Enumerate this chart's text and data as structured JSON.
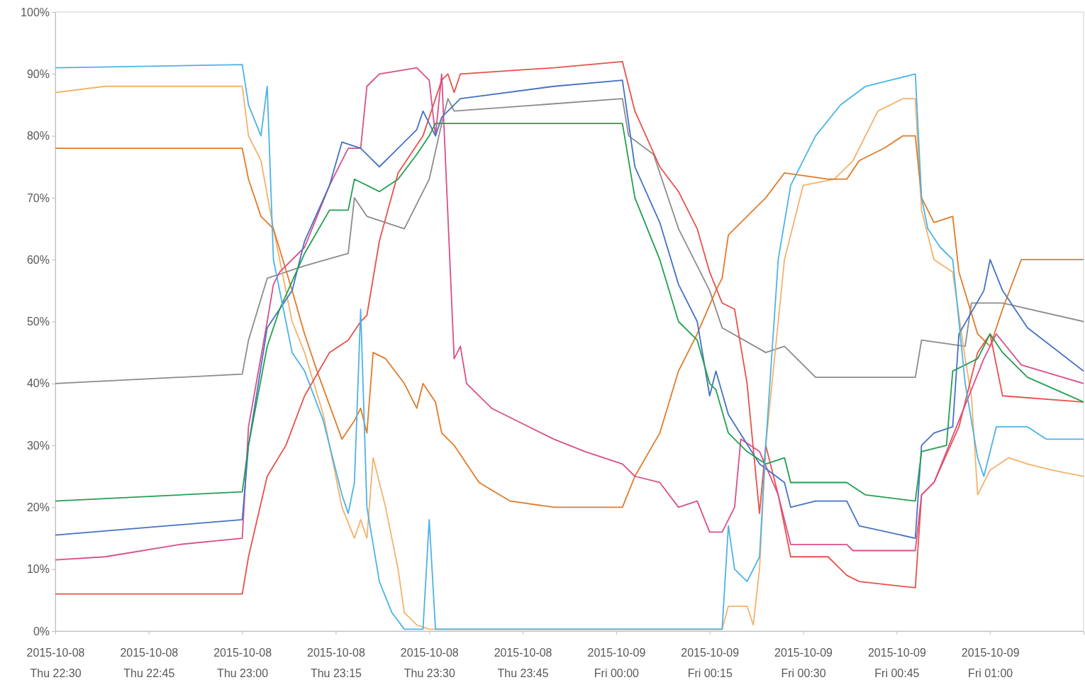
{
  "chart_data": {
    "type": "line",
    "xlim": [
      "2015-10-08T22:30",
      "2015-10-09T01:15"
    ],
    "ylim": [
      0,
      100
    ],
    "xticks": [
      {
        "value": "2015-10-08T22:30",
        "label": "2015-10-08\nThu 22:30"
      },
      {
        "value": "2015-10-08T22:45",
        "label": "2015-10-08\nThu 22:45"
      },
      {
        "value": "2015-10-08T23:00",
        "label": "2015-10-08\nThu 23:00"
      },
      {
        "value": "2015-10-08T23:15",
        "label": "2015-10-08\nThu 23:15"
      },
      {
        "value": "2015-10-08T23:30",
        "label": "2015-10-08\nThu 23:30"
      },
      {
        "value": "2015-10-08T23:45",
        "label": "2015-10-08\nThu 23:45"
      },
      {
        "value": "2015-10-09T00:00",
        "label": "2015-10-09\nFri 00:00"
      },
      {
        "value": "2015-10-09T00:15",
        "label": "2015-10-09\nFri 00:15"
      },
      {
        "value": "2015-10-09T00:30",
        "label": "2015-10-09\nFri 00:30"
      },
      {
        "value": "2015-10-09T00:45",
        "label": "2015-10-09\nFri 00:45"
      },
      {
        "value": "2015-10-09T01:00",
        "label": "2015-10-09\nFri 01:00"
      }
    ],
    "yticks": [
      {
        "value": 0,
        "label": "0%"
      },
      {
        "value": 10,
        "label": "10%"
      },
      {
        "value": 20,
        "label": "20%"
      },
      {
        "value": 30,
        "label": "30%"
      },
      {
        "value": 40,
        "label": "40%"
      },
      {
        "value": 50,
        "label": "50%"
      },
      {
        "value": 60,
        "label": "60%"
      },
      {
        "value": 70,
        "label": "70%"
      },
      {
        "value": 80,
        "label": "80%"
      },
      {
        "value": 90,
        "label": "90%"
      },
      {
        "value": 100,
        "label": "100%"
      }
    ],
    "line_style": "solid",
    "series": [
      {
        "color": "#8c8c8c",
        "x": [
          "2015-10-08T22:30",
          "2015-10-08T23:00",
          "2015-10-08T23:01",
          "2015-10-08T23:04",
          "2015-10-08T23:10",
          "2015-10-08T23:17",
          "2015-10-08T23:18",
          "2015-10-08T23:20",
          "2015-10-08T23:26",
          "2015-10-08T23:30",
          "2015-10-08T23:32",
          "2015-10-08T23:33",
          "2015-10-08T23:34",
          "2015-10-09T00:01",
          "2015-10-09T00:02",
          "2015-10-09T00:06",
          "2015-10-09T00:10",
          "2015-10-09T00:15",
          "2015-10-09T00:17",
          "2015-10-09T00:24",
          "2015-10-09T00:27",
          "2015-10-09T00:32",
          "2015-10-09T00:48",
          "2015-10-09T00:49",
          "2015-10-09T00:56",
          "2015-10-09T00:57",
          "2015-10-09T01:02",
          "2015-10-09T01:15"
        ],
        "values": [
          40,
          41.5,
          47,
          57,
          59,
          61,
          70,
          67,
          65,
          73,
          82,
          86,
          84,
          86,
          80,
          77,
          65,
          55,
          49,
          45,
          46,
          41,
          41,
          47,
          46,
          53,
          53,
          50
        ]
      },
      {
        "color": "#f4b26b",
        "x": [
          "2015-10-08T22:30",
          "2015-10-08T22:38",
          "2015-10-08T23:00",
          "2015-10-08T23:01",
          "2015-10-08T23:03",
          "2015-10-08T23:05",
          "2015-10-08T23:08",
          "2015-10-08T23:10",
          "2015-10-08T23:13",
          "2015-10-08T23:16",
          "2015-10-08T23:18",
          "2015-10-08T23:19",
          "2015-10-08T23:20",
          "2015-10-08T23:21",
          "2015-10-08T23:23",
          "2015-10-08T23:25",
          "2015-10-08T23:26",
          "2015-10-08T23:28",
          "2015-10-08T23:30",
          "2015-10-09T00:17",
          "2015-10-09T00:18",
          "2015-10-09T00:21",
          "2015-10-09T00:22",
          "2015-10-09T00:23",
          "2015-10-09T00:24",
          "2015-10-09T00:27",
          "2015-10-09T00:30",
          "2015-10-09T00:35",
          "2015-10-09T00:38",
          "2015-10-09T00:42",
          "2015-10-09T00:46",
          "2015-10-09T00:48",
          "2015-10-09T00:49",
          "2015-10-09T00:51",
          "2015-10-09T00:54",
          "2015-10-09T00:56",
          "2015-10-09T00:57",
          "2015-10-09T00:58",
          "2015-10-09T01:00",
          "2015-10-09T01:03",
          "2015-10-09T01:06",
          "2015-10-09T01:10",
          "2015-10-09T01:15"
        ],
        "values": [
          87,
          88,
          88,
          80,
          76,
          65,
          50,
          45,
          35,
          20,
          15,
          18,
          15,
          28,
          20,
          10,
          3,
          1,
          0.3,
          0.3,
          4,
          4,
          1,
          10,
          30,
          60,
          72,
          73,
          76,
          84,
          86,
          86,
          68,
          60,
          58,
          44,
          38,
          22,
          26,
          28,
          27,
          26,
          25
        ]
      },
      {
        "color": "#e07b2a",
        "x": [
          "2015-10-08T22:30",
          "2015-10-08T23:00",
          "2015-10-08T23:01",
          "2015-10-08T23:03",
          "2015-10-08T23:05",
          "2015-10-08T23:08",
          "2015-10-08T23:10",
          "2015-10-08T23:12",
          "2015-10-08T23:16",
          "2015-10-08T23:18",
          "2015-10-08T23:19",
          "2015-10-08T23:20",
          "2015-10-08T23:21",
          "2015-10-08T23:23",
          "2015-10-08T23:26",
          "2015-10-08T23:28",
          "2015-10-08T23:29",
          "2015-10-08T23:31",
          "2015-10-08T23:32",
          "2015-10-08T23:34",
          "2015-10-08T23:38",
          "2015-10-08T23:43",
          "2015-10-08T23:50",
          "2015-10-09T00:01",
          "2015-10-09T00:03",
          "2015-10-09T00:07",
          "2015-10-09T00:10",
          "2015-10-09T00:13",
          "2015-10-09T00:16",
          "2015-10-09T00:17",
          "2015-10-09T00:18",
          "2015-10-09T00:21",
          "2015-10-09T00:24",
          "2015-10-09T00:27",
          "2015-10-09T00:34",
          "2015-10-09T00:37",
          "2015-10-09T00:39",
          "2015-10-09T00:43",
          "2015-10-09T00:46",
          "2015-10-09T00:48",
          "2015-10-09T00:49",
          "2015-10-09T00:51",
          "2015-10-09T00:54",
          "2015-10-09T00:55",
          "2015-10-09T00:58",
          "2015-10-09T01:00",
          "2015-10-09T01:02",
          "2015-10-09T01:05",
          "2015-10-09T01:15"
        ],
        "values": [
          78,
          78,
          73,
          67,
          65,
          55,
          48,
          42,
          31,
          34,
          36,
          32,
          45,
          44,
          40,
          36,
          40,
          37,
          32,
          30,
          24,
          21,
          20,
          20,
          25,
          32,
          42,
          48,
          55,
          57,
          64,
          67,
          70,
          74,
          73,
          73,
          76,
          78,
          80,
          80,
          70,
          66,
          67,
          58,
          48,
          46,
          52,
          60,
          60
        ]
      },
      {
        "color": "#e8514a",
        "x": [
          "2015-10-08T22:30",
          "2015-10-08T23:00",
          "2015-10-08T23:01",
          "2015-10-08T23:04",
          "2015-10-08T23:07",
          "2015-10-08T23:10",
          "2015-10-08T23:14",
          "2015-10-08T23:17",
          "2015-10-08T23:19",
          "2015-10-08T23:20",
          "2015-10-08T23:22",
          "2015-10-08T23:25",
          "2015-10-08T23:29",
          "2015-10-08T23:32",
          "2015-10-08T23:33",
          "2015-10-08T23:34",
          "2015-10-08T23:35",
          "2015-10-08T23:50",
          "2015-10-09T00:01",
          "2015-10-09T00:03",
          "2015-10-09T00:07",
          "2015-10-09T00:10",
          "2015-10-09T00:13",
          "2015-10-09T00:15",
          "2015-10-09T00:17",
          "2015-10-09T00:19",
          "2015-10-09T00:21",
          "2015-10-09T00:23",
          "2015-10-09T00:24",
          "2015-10-09T00:26",
          "2015-10-09T00:28",
          "2015-10-09T00:34",
          "2015-10-09T00:37",
          "2015-10-09T00:39",
          "2015-10-09T00:48",
          "2015-10-09T00:49",
          "2015-10-09T00:51",
          "2015-10-09T00:55",
          "2015-10-09T00:58",
          "2015-10-09T01:00",
          "2015-10-09T01:02",
          "2015-10-09T01:15"
        ],
        "values": [
          6,
          6,
          12,
          25,
          30,
          38,
          45,
          47,
          50,
          51,
          63,
          74,
          80,
          89,
          90,
          87,
          90,
          91,
          92,
          84,
          75,
          71,
          65,
          58,
          53,
          52,
          40,
          19,
          30,
          22,
          12,
          12,
          9,
          8,
          7,
          22,
          24,
          33,
          45,
          48,
          38,
          37
        ]
      },
      {
        "color": "#d94f8a",
        "x": [
          "2015-10-08T22:30",
          "2015-10-08T22:38",
          "2015-10-08T22:50",
          "2015-10-08T23:00",
          "2015-10-08T23:01",
          "2015-10-08T23:04",
          "2015-10-08T23:05",
          "2015-10-08T23:06",
          "2015-10-08T23:10",
          "2015-10-08T23:14",
          "2015-10-08T23:17",
          "2015-10-08T23:19",
          "2015-10-08T23:20",
          "2015-10-08T23:22",
          "2015-10-08T23:28",
          "2015-10-08T23:30",
          "2015-10-08T23:31",
          "2015-10-08T23:32",
          "2015-10-08T23:34",
          "2015-10-08T23:35",
          "2015-10-08T23:36",
          "2015-10-08T23:40",
          "2015-10-08T23:50",
          "2015-10-08T23:55",
          "2015-10-09T00:01",
          "2015-10-09T00:03",
          "2015-10-09T00:07",
          "2015-10-09T00:10",
          "2015-10-09T00:13",
          "2015-10-09T00:15",
          "2015-10-09T00:17",
          "2015-10-09T00:19",
          "2015-10-09T00:20",
          "2015-10-09T00:23",
          "2015-10-09T00:26",
          "2015-10-09T00:28",
          "2015-10-09T00:37",
          "2015-10-09T00:38",
          "2015-10-09T00:48",
          "2015-10-09T00:49",
          "2015-10-09T00:51",
          "2015-10-09T00:55",
          "2015-10-09T00:59",
          "2015-10-09T01:01",
          "2015-10-09T01:05",
          "2015-10-09T01:15"
        ],
        "values": [
          11.5,
          12,
          14,
          15,
          33,
          50,
          56,
          58,
          62,
          72,
          78,
          78,
          88,
          90,
          91,
          89,
          80,
          90,
          44,
          46,
          40,
          36,
          31,
          29,
          27,
          25,
          24,
          20,
          21,
          16,
          16,
          20,
          31,
          29,
          22,
          14,
          14,
          13,
          13,
          22,
          24,
          34,
          44,
          48,
          43,
          40
        ]
      },
      {
        "color": "#4472c4",
        "x": [
          "2015-10-08T22:30",
          "2015-10-08T23:00",
          "2015-10-08T23:01",
          "2015-10-08T23:04",
          "2015-10-08T23:08",
          "2015-10-08T23:10",
          "2015-10-08T23:14",
          "2015-10-08T23:16",
          "2015-10-08T23:19",
          "2015-10-08T23:22",
          "2015-10-08T23:25",
          "2015-10-08T23:28",
          "2015-10-08T23:29",
          "2015-10-08T23:31",
          "2015-10-08T23:32",
          "2015-10-08T23:35",
          "2015-10-08T23:50",
          "2015-10-09T00:01",
          "2015-10-09T00:03",
          "2015-10-09T00:07",
          "2015-10-09T00:10",
          "2015-10-09T00:13",
          "2015-10-09T00:15",
          "2015-10-09T00:16",
          "2015-10-09T00:18",
          "2015-10-09T00:23",
          "2015-10-09T00:27",
          "2015-10-09T00:28",
          "2015-10-09T00:32",
          "2015-10-09T00:37",
          "2015-10-09T00:39",
          "2015-10-09T00:48",
          "2015-10-09T00:49",
          "2015-10-09T00:51",
          "2015-10-09T00:54",
          "2015-10-09T00:55",
          "2015-10-09T00:59",
          "2015-10-09T01:00",
          "2015-10-09T01:02",
          "2015-10-09T01:06",
          "2015-10-09T01:15"
        ],
        "values": [
          15.5,
          18,
          30,
          49,
          55,
          63,
          72,
          79,
          78,
          75,
          78,
          81,
          84,
          80,
          83,
          86,
          88,
          89,
          75,
          66,
          56,
          50,
          38,
          42,
          35,
          27,
          24,
          20,
          21,
          21,
          17,
          15,
          30,
          32,
          33,
          48,
          55,
          60,
          55,
          49,
          42
        ]
      },
      {
        "color": "#21a04f",
        "x": [
          "2015-10-08T22:30",
          "2015-10-08T23:00",
          "2015-10-08T23:01",
          "2015-10-08T23:04",
          "2015-10-08T23:06",
          "2015-10-08T23:10",
          "2015-10-08T23:14",
          "2015-10-08T23:17",
          "2015-10-08T23:18",
          "2015-10-08T23:22",
          "2015-10-08T23:25",
          "2015-10-08T23:28",
          "2015-10-08T23:30",
          "2015-10-08T23:31",
          "2015-10-08T23:32",
          "2015-10-09T00:01",
          "2015-10-09T00:03",
          "2015-10-09T00:07",
          "2015-10-09T00:10",
          "2015-10-09T00:13",
          "2015-10-09T00:15",
          "2015-10-09T00:16",
          "2015-10-09T00:18",
          "2015-10-09T00:21",
          "2015-10-09T00:24",
          "2015-10-09T00:27",
          "2015-10-09T00:28",
          "2015-10-09T00:37",
          "2015-10-09T00:40",
          "2015-10-09T00:48",
          "2015-10-09T00:49",
          "2015-10-09T00:53",
          "2015-10-09T00:54",
          "2015-10-09T00:58",
          "2015-10-09T01:00",
          "2015-10-09T01:02",
          "2015-10-09T01:06",
          "2015-10-09T01:15"
        ],
        "values": [
          21,
          22.5,
          30,
          46,
          52,
          61,
          68,
          68,
          73,
          71,
          73,
          77,
          80,
          82,
          82,
          82,
          70,
          60,
          50,
          47,
          40,
          39,
          32,
          29,
          27,
          28,
          24,
          24,
          22,
          21,
          29,
          30,
          42,
          44,
          48,
          45,
          41,
          37
        ]
      },
      {
        "color": "#4db3e6",
        "x": [
          "2015-10-08T22:30",
          "2015-10-08T23:00",
          "2015-10-08T23:01",
          "2015-10-08T23:03",
          "2015-10-08T23:04",
          "2015-10-08T23:05",
          "2015-10-08T23:08",
          "2015-10-08T23:10",
          "2015-10-08T23:13",
          "2015-10-08T23:16",
          "2015-10-08T23:17",
          "2015-10-08T23:18",
          "2015-10-08T23:19",
          "2015-10-08T23:20",
          "2015-10-08T23:22",
          "2015-10-08T23:24",
          "2015-10-08T23:26",
          "2015-10-08T23:29",
          "2015-10-08T23:30",
          "2015-10-08T23:31",
          "2015-10-09T00:17",
          "2015-10-09T00:18",
          "2015-10-09T00:19",
          "2015-10-09T00:21",
          "2015-10-09T00:23",
          "2015-10-09T00:24",
          "2015-10-09T00:26",
          "2015-10-09T00:28",
          "2015-10-09T00:32",
          "2015-10-09T00:36",
          "2015-10-09T00:40",
          "2015-10-09T00:44",
          "2015-10-09T00:48",
          "2015-10-09T00:49",
          "2015-10-09T00:50",
          "2015-10-09T00:52",
          "2015-10-09T00:54",
          "2015-10-09T00:56",
          "2015-10-09T00:58",
          "2015-10-09T00:59",
          "2015-10-09T01:01",
          "2015-10-09T01:06",
          "2015-10-09T01:09",
          "2015-10-09T01:15"
        ],
        "values": [
          91,
          91.5,
          85,
          80,
          88,
          60,
          45,
          42,
          34,
          22,
          19,
          24,
          52,
          20,
          8,
          3,
          0.3,
          0.3,
          18,
          0.3,
          0.3,
          17,
          10,
          8,
          12,
          30,
          60,
          72,
          80,
          85,
          88,
          89,
          90,
          70,
          65,
          62,
          60,
          40,
          28,
          25,
          33,
          33,
          31,
          31
        ]
      }
    ]
  }
}
